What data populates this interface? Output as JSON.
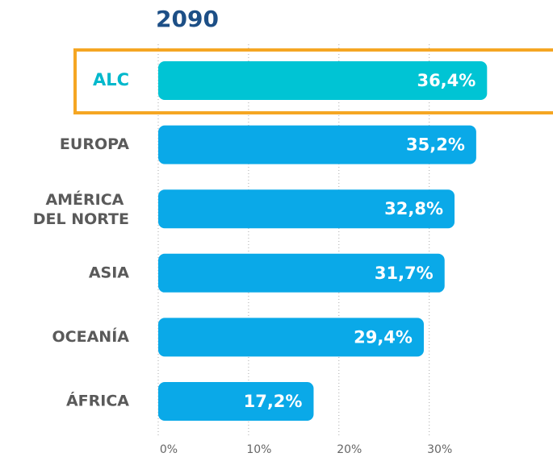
{
  "chart_data": {
    "type": "bar",
    "orientation": "horizontal",
    "title": "2090",
    "categories": [
      "ALC",
      "EUROPA",
      "AMÉRICA DEL NORTE",
      "ASIA",
      "OCEANÍA",
      "ÁFRICA"
    ],
    "values": [
      36.4,
      35.2,
      32.8,
      31.7,
      29.4,
      17.2
    ],
    "value_labels": [
      "36,4%",
      "35,2%",
      "32,8%",
      "31,7%",
      "29,4%",
      "17,2%"
    ],
    "colors": [
      "#00c4d4",
      "#0aa9e8",
      "#0aa9e8",
      "#0aa9e8",
      "#0aa9e8",
      "#0aa9e8"
    ],
    "label_colors": [
      "#00b8cc",
      "#5a5a5a",
      "#5a5a5a",
      "#5a5a5a",
      "#5a5a5a",
      "#5a5a5a"
    ],
    "xlim": [
      0,
      43.7
    ],
    "xticks": [
      {
        "value": 0,
        "label": "0%"
      },
      {
        "value": 10,
        "label": "10%"
      },
      {
        "value": 20,
        "label": "20%"
      },
      {
        "value": 30,
        "label": "30%"
      }
    ],
    "grid": true
  }
}
